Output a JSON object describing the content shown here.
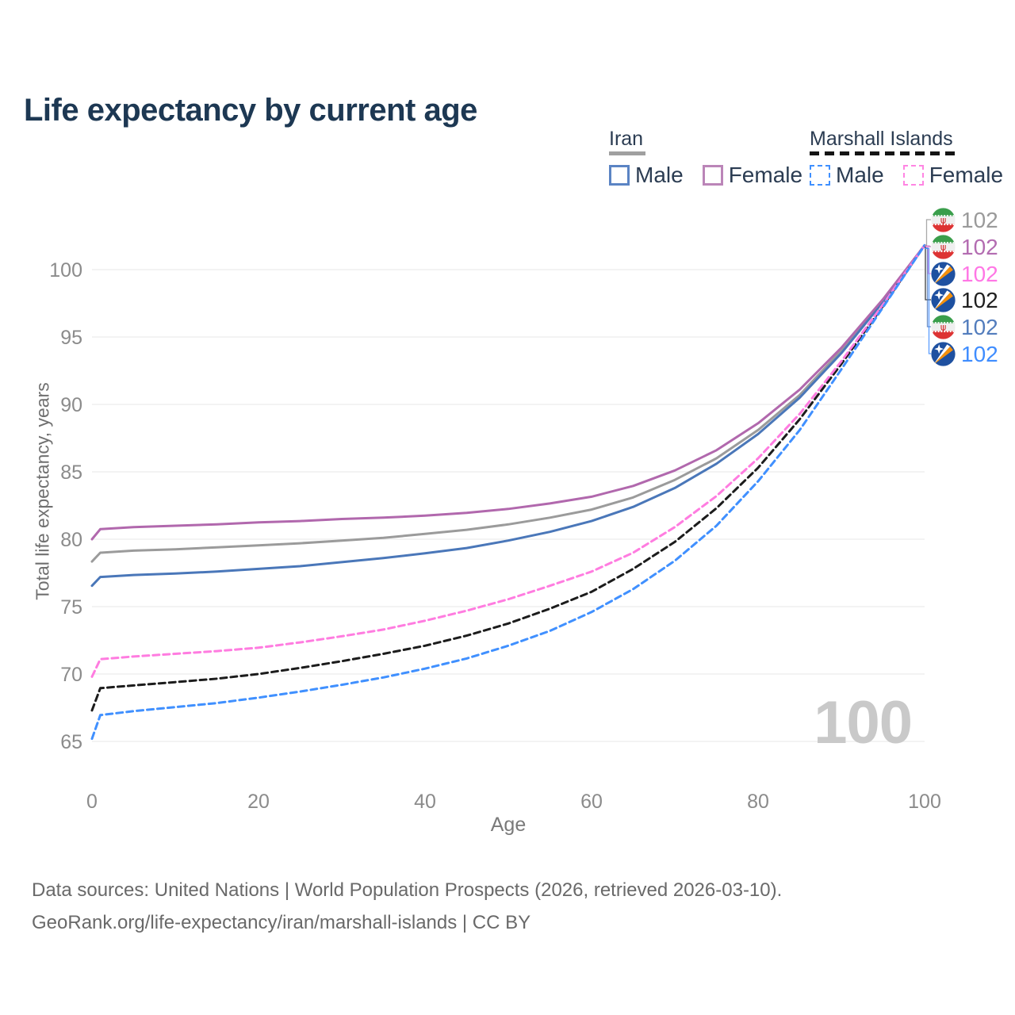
{
  "title": "Life expectancy by current age",
  "legend": {
    "groups": [
      {
        "name": "Iran",
        "line_style": "solid",
        "underline_color": "#a0a0a0",
        "items": [
          {
            "label": "Male",
            "color": "#5b84c4"
          },
          {
            "label": "Female",
            "color": "#bb85b8"
          }
        ]
      },
      {
        "name": "Marshall Islands",
        "line_style": "dashed",
        "underline_color": "#141414",
        "items": [
          {
            "label": "Male",
            "color": "#4090ff"
          },
          {
            "label": "Female",
            "color": "#ff85e3"
          }
        ]
      }
    ]
  },
  "chart_data": {
    "type": "line",
    "title": "Life expectancy by current age",
    "xlabel": "Age",
    "ylabel": "Total life expectancy, years",
    "xlim": [
      0,
      100
    ],
    "ylim": [
      65,
      102
    ],
    "xticks": [
      0,
      20,
      40,
      60,
      80,
      100
    ],
    "yticks": [
      65,
      70,
      75,
      80,
      85,
      90,
      95,
      100
    ],
    "grid": true,
    "legend_position": "top-right",
    "hover_age_indicator": "100",
    "x": [
      0,
      1,
      5,
      10,
      15,
      20,
      25,
      30,
      35,
      40,
      45,
      50,
      55,
      60,
      65,
      70,
      75,
      80,
      85,
      90,
      95,
      100
    ],
    "series": [
      {
        "name": "Iran — Total",
        "country": "Iran",
        "flag": "iran",
        "line_style": "solid",
        "color": "#9b9b9b",
        "end_label": "102",
        "end_label_color": "#9a9a9a",
        "values": [
          78.35,
          79.0,
          79.15,
          79.25,
          79.4,
          79.55,
          79.7,
          79.9,
          80.1,
          80.4,
          80.7,
          81.1,
          81.6,
          82.2,
          83.1,
          84.4,
          86.0,
          88.1,
          90.7,
          94.0,
          97.7,
          101.8
        ]
      },
      {
        "name": "Iran — Female",
        "country": "Iran",
        "flag": "iran",
        "line_style": "solid",
        "color": "#b168ad",
        "end_label": "102",
        "end_label_color": "#b36cb1",
        "values": [
          80.0,
          80.75,
          80.9,
          81.0,
          81.1,
          81.25,
          81.35,
          81.5,
          81.6,
          81.75,
          81.95,
          82.25,
          82.65,
          83.15,
          83.95,
          85.1,
          86.6,
          88.6,
          91.1,
          94.2,
          97.8,
          101.8
        ]
      },
      {
        "name": "Marshall Islands — Female",
        "country": "Marshall Islands",
        "flag": "marshall-islands",
        "line_style": "dashed",
        "color": "#ff7ce0",
        "end_label": "102",
        "end_label_color": "#ff77e5",
        "values": [
          69.8,
          71.1,
          71.3,
          71.5,
          71.7,
          71.95,
          72.35,
          72.8,
          73.3,
          73.95,
          74.7,
          75.55,
          76.55,
          77.6,
          79.0,
          80.9,
          83.2,
          86.0,
          89.3,
          93.2,
          97.4,
          101.8
        ]
      },
      {
        "name": "Marshall Islands — Total",
        "country": "Marshall Islands",
        "flag": "marshall-islands",
        "line_style": "dashed",
        "color": "#1c1c1c",
        "end_label": "102",
        "end_label_color": "#1f1f1f",
        "values": [
          67.3,
          68.95,
          69.15,
          69.4,
          69.65,
          70.0,
          70.45,
          70.95,
          71.5,
          72.1,
          72.85,
          73.75,
          74.85,
          76.1,
          77.8,
          79.8,
          82.3,
          85.3,
          88.9,
          93.0,
          97.3,
          101.8
        ]
      },
      {
        "name": "Iran — Male",
        "country": "Iran",
        "flag": "iran",
        "line_style": "solid",
        "color": "#4a77b9",
        "end_label": "102",
        "end_label_color": "#537dbd",
        "values": [
          76.55,
          77.2,
          77.35,
          77.45,
          77.6,
          77.8,
          78.0,
          78.3,
          78.6,
          78.95,
          79.35,
          79.9,
          80.55,
          81.35,
          82.4,
          83.8,
          85.6,
          87.8,
          90.5,
          93.8,
          97.6,
          101.8
        ]
      },
      {
        "name": "Marshall Islands — Male",
        "country": "Marshall Islands",
        "flag": "marshall-islands",
        "line_style": "dashed",
        "color": "#4090ff",
        "end_label": "102",
        "end_label_color": "#3f8dff",
        "values": [
          65.2,
          66.95,
          67.25,
          67.55,
          67.85,
          68.25,
          68.7,
          69.2,
          69.75,
          70.4,
          71.15,
          72.1,
          73.2,
          74.6,
          76.3,
          78.4,
          81.0,
          84.3,
          88.1,
          92.6,
          97.2,
          101.8
        ]
      }
    ]
  },
  "footer": {
    "line1": "Data sources: United Nations | World Population Prospects (2026, retrieved 2026-03-10).",
    "line2": "GeoRank.org/life-expectancy/iran/marshall-islands | CC BY"
  }
}
